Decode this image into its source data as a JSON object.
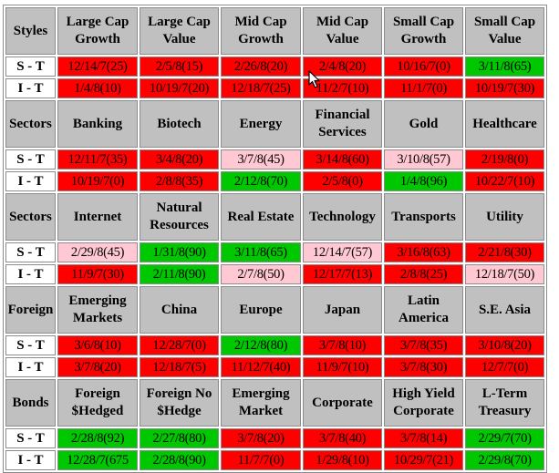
{
  "colors": {
    "red": "#ff0000",
    "green": "#00c800",
    "pink": "#ffc8d2",
    "header_gray": "#c0c0c0"
  },
  "sections": [
    {
      "label": "Styles",
      "columns": [
        [
          "Large Cap",
          "Growth"
        ],
        [
          "Large Cap",
          "Value"
        ],
        [
          "Mid Cap",
          "Growth"
        ],
        [
          "Mid Cap",
          "Value"
        ],
        [
          "Small Cap",
          "Growth"
        ],
        [
          "Small Cap",
          "Value"
        ]
      ],
      "rows": [
        {
          "label": "S - T",
          "cells": [
            {
              "text": "12/14/7(25)",
              "color": "red"
            },
            {
              "text": "2/5/8(15)",
              "color": "red"
            },
            {
              "text": "2/26/8(20)",
              "color": "red"
            },
            {
              "text": "2/4/8(20)",
              "color": "red"
            },
            {
              "text": "10/16/7(0)",
              "color": "red"
            },
            {
              "text": "3/11/8(65)",
              "color": "green"
            }
          ]
        },
        {
          "label": "I - T",
          "cells": [
            {
              "text": "1/4/8(10)",
              "color": "red"
            },
            {
              "text": "10/19/7(20)",
              "color": "red"
            },
            {
              "text": "12/18/7(25)",
              "color": "red"
            },
            {
              "text": "11/2/7(10)",
              "color": "red"
            },
            {
              "text": "11/1/7(0)",
              "color": "red"
            },
            {
              "text": "10/19/7(30)",
              "color": "red"
            }
          ]
        }
      ]
    },
    {
      "label": "Sectors",
      "columns": [
        [
          "Banking"
        ],
        [
          "Biotech"
        ],
        [
          "Energy"
        ],
        [
          "Financial",
          "Services"
        ],
        [
          "Gold"
        ],
        [
          "Healthcare"
        ]
      ],
      "rows": [
        {
          "label": "S - T",
          "cells": [
            {
              "text": "12/11/7(35)",
              "color": "red"
            },
            {
              "text": "3/4/8(20)",
              "color": "red"
            },
            {
              "text": "3/7/8(45)",
              "color": "pink"
            },
            {
              "text": "3/14/8(60)",
              "color": "red"
            },
            {
              "text": "3/10/8(57)",
              "color": "pink"
            },
            {
              "text": "2/19/8(0)",
              "color": "red"
            }
          ]
        },
        {
          "label": "I - T",
          "cells": [
            {
              "text": "10/19/7(0)",
              "color": "red"
            },
            {
              "text": "2/8/8(35)",
              "color": "red"
            },
            {
              "text": "2/12/8(70)",
              "color": "green"
            },
            {
              "text": "2/5/8(0)",
              "color": "red"
            },
            {
              "text": "1/4/8(96)",
              "color": "green"
            },
            {
              "text": "10/22/7(10)",
              "color": "red"
            }
          ]
        }
      ]
    },
    {
      "label": "Sectors",
      "columns": [
        [
          "Internet"
        ],
        [
          "Natural",
          "Resources"
        ],
        [
          "Real Estate"
        ],
        [
          "Technology"
        ],
        [
          "Transports"
        ],
        [
          "Utility"
        ]
      ],
      "rows": [
        {
          "label": "S - T",
          "cells": [
            {
              "text": "2/29/8(45)",
              "color": "pink"
            },
            {
              "text": "1/31/8(90)",
              "color": "green"
            },
            {
              "text": "3/11/8(65)",
              "color": "green"
            },
            {
              "text": "12/14/7(57)",
              "color": "pink"
            },
            {
              "text": "3/16/8(63)",
              "color": "red"
            },
            {
              "text": "2/21/8(30)",
              "color": "red"
            }
          ]
        },
        {
          "label": "I - T",
          "cells": [
            {
              "text": "11/9/7(30)",
              "color": "red"
            },
            {
              "text": "2/11/8(90)",
              "color": "green"
            },
            {
              "text": "2/7/8(50)",
              "color": "pink"
            },
            {
              "text": "12/17/7(13)",
              "color": "red"
            },
            {
              "text": "2/8/8(25)",
              "color": "red"
            },
            {
              "text": "12/18/7(50)",
              "color": "pink"
            }
          ]
        }
      ]
    },
    {
      "label": "Foreign",
      "columns": [
        [
          "Emerging",
          "Markets"
        ],
        [
          "China"
        ],
        [
          "Europe"
        ],
        [
          "Japan"
        ],
        [
          "Latin",
          "America"
        ],
        [
          "S.E. Asia"
        ]
      ],
      "rows": [
        {
          "label": "S - T",
          "cells": [
            {
              "text": "3/6/8(10)",
              "color": "red"
            },
            {
              "text": "12/28/7(0)",
              "color": "red"
            },
            {
              "text": "2/12/8(80)",
              "color": "green"
            },
            {
              "text": "3/7/8(10)",
              "color": "red"
            },
            {
              "text": "3/7/8(35)",
              "color": "red"
            },
            {
              "text": "3/10/8(20)",
              "color": "red"
            }
          ]
        },
        {
          "label": "I - T",
          "cells": [
            {
              "text": "3/7/8(20)",
              "color": "red"
            },
            {
              "text": "12/18/7(5)",
              "color": "red"
            },
            {
              "text": "11/12/7(40)",
              "color": "red"
            },
            {
              "text": "11/9/7(10)",
              "color": "red"
            },
            {
              "text": "3/7/8(30)",
              "color": "red"
            },
            {
              "text": "12/7/7(0)",
              "color": "red"
            }
          ]
        }
      ]
    },
    {
      "label": "Bonds",
      "columns": [
        [
          "Foreign",
          "$Hedged"
        ],
        [
          "Foreign No",
          "$Hedge"
        ],
        [
          "Emerging",
          "Market"
        ],
        [
          "Corporate"
        ],
        [
          "High Yield",
          "Corporate"
        ],
        [
          "L-Term",
          "Treasury"
        ]
      ],
      "rows": [
        {
          "label": "S - T",
          "cells": [
            {
              "text": "2/28/8(92)",
              "color": "green"
            },
            {
              "text": "2/27/8(80)",
              "color": "green"
            },
            {
              "text": "3/7/8(20)",
              "color": "red"
            },
            {
              "text": "3/7/8(40)",
              "color": "red"
            },
            {
              "text": "3/7/8(14)",
              "color": "red"
            },
            {
              "text": "2/29/7(70)",
              "color": "green"
            }
          ]
        },
        {
          "label": "I - T",
          "cells": [
            {
              "text": "12/28/7(675",
              "color": "green"
            },
            {
              "text": "2/28/8(90)",
              "color": "green"
            },
            {
              "text": "11/7/7(0)",
              "color": "red"
            },
            {
              "text": "1/29/8(10)",
              "color": "red"
            },
            {
              "text": "10/29/7(21)",
              "color": "red"
            },
            {
              "text": "2/29/8(70)",
              "color": "green"
            }
          ]
        }
      ]
    }
  ]
}
